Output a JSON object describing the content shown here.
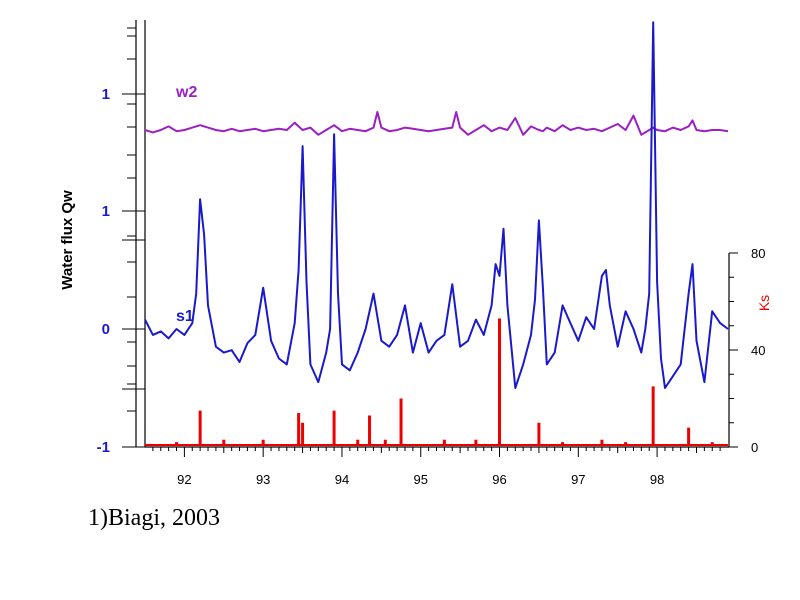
{
  "caption": "1)Biagi, 2003",
  "chart_data": {
    "type": "line",
    "xlabel": "",
    "ylabel": "Water flux Qw",
    "right_ylabel": "Ks",
    "x_ticks": [
      "92",
      "93",
      "94",
      "95",
      "96",
      "97",
      "98"
    ],
    "x_range": [
      91.5,
      98.9
    ],
    "left_y_ticks": [
      {
        "label": "1",
        "series": "w2",
        "value": 1
      },
      {
        "label": "1",
        "series": "s1",
        "value": 1
      },
      {
        "label": "0",
        "series": "s1",
        "value": 0
      },
      {
        "label": "-1",
        "series": "s1",
        "value": -1
      }
    ],
    "right_y_ticks": [
      "0",
      "40",
      "80"
    ],
    "right_ylim": [
      0,
      80
    ],
    "colors": {
      "w2": "#9b1fc4",
      "s1": "#1a1acc",
      "ks": "#ee0000",
      "tick_left": "#1a1acc",
      "ks_axis": "#ee0000"
    },
    "series": [
      {
        "name": "w2",
        "color": "#9b1fc4",
        "x": [
          91.5,
          91.6,
          91.7,
          91.8,
          91.9,
          92.0,
          92.1,
          92.2,
          92.3,
          92.4,
          92.5,
          92.6,
          92.7,
          92.8,
          92.9,
          93.0,
          93.1,
          93.2,
          93.3,
          93.4,
          93.5,
          93.6,
          93.7,
          93.8,
          93.9,
          94.0,
          94.1,
          94.2,
          94.3,
          94.4,
          94.45,
          94.5,
          94.6,
          94.7,
          94.8,
          94.9,
          95.0,
          95.1,
          95.2,
          95.3,
          95.4,
          95.45,
          95.5,
          95.6,
          95.7,
          95.8,
          95.9,
          96.0,
          96.1,
          96.2,
          96.3,
          96.4,
          96.5,
          96.55,
          96.6,
          96.7,
          96.8,
          96.9,
          97.0,
          97.1,
          97.2,
          97.3,
          97.4,
          97.5,
          97.6,
          97.7,
          97.8,
          97.9,
          97.95,
          98.0,
          98.1,
          98.2,
          98.3,
          98.4,
          98.45,
          98.5,
          98.6,
          98.7,
          98.8,
          98.9
        ],
        "y": [
          0.7,
          0.68,
          0.7,
          0.73,
          0.69,
          0.7,
          0.72,
          0.74,
          0.72,
          0.7,
          0.69,
          0.71,
          0.69,
          0.7,
          0.71,
          0.69,
          0.7,
          0.71,
          0.7,
          0.76,
          0.7,
          0.72,
          0.66,
          0.7,
          0.74,
          0.69,
          0.71,
          0.7,
          0.69,
          0.72,
          0.85,
          0.72,
          0.69,
          0.7,
          0.72,
          0.71,
          0.7,
          0.69,
          0.7,
          0.71,
          0.72,
          0.85,
          0.72,
          0.66,
          0.7,
          0.74,
          0.69,
          0.72,
          0.7,
          0.8,
          0.66,
          0.73,
          0.7,
          0.69,
          0.72,
          0.69,
          0.74,
          0.7,
          0.72,
          0.7,
          0.71,
          0.69,
          0.72,
          0.75,
          0.7,
          0.82,
          0.66,
          0.7,
          0.72,
          0.7,
          0.69,
          0.72,
          0.7,
          0.73,
          0.78,
          0.7,
          0.69,
          0.7,
          0.7,
          0.69
        ]
      },
      {
        "name": "s1",
        "color": "#1a1acc",
        "x": [
          91.5,
          91.6,
          91.7,
          91.8,
          91.9,
          92.0,
          92.1,
          92.15,
          92.2,
          92.25,
          92.3,
          92.4,
          92.5,
          92.6,
          92.7,
          92.8,
          92.9,
          93.0,
          93.1,
          93.2,
          93.3,
          93.4,
          93.45,
          93.5,
          93.55,
          93.6,
          93.7,
          93.8,
          93.85,
          93.9,
          93.95,
          94.0,
          94.1,
          94.2,
          94.3,
          94.4,
          94.5,
          94.6,
          94.7,
          94.8,
          94.9,
          95.0,
          95.1,
          95.2,
          95.3,
          95.4,
          95.5,
          95.6,
          95.7,
          95.8,
          95.9,
          95.95,
          96.0,
          96.05,
          96.1,
          96.2,
          96.3,
          96.4,
          96.45,
          96.5,
          96.55,
          96.6,
          96.7,
          96.8,
          96.9,
          97.0,
          97.1,
          97.2,
          97.3,
          97.35,
          97.4,
          97.5,
          97.6,
          97.7,
          97.8,
          97.85,
          97.9,
          97.95,
          98.0,
          98.05,
          98.1,
          98.2,
          98.3,
          98.4,
          98.45,
          98.5,
          98.6,
          98.7,
          98.8,
          98.9
        ],
        "y": [
          0.08,
          -0.05,
          -0.02,
          -0.08,
          0.0,
          -0.05,
          0.05,
          0.3,
          1.1,
          0.8,
          0.2,
          -0.15,
          -0.2,
          -0.18,
          -0.28,
          -0.12,
          -0.05,
          0.35,
          -0.1,
          -0.25,
          -0.3,
          0.05,
          0.5,
          1.55,
          0.4,
          -0.3,
          -0.45,
          -0.2,
          0.0,
          1.65,
          0.3,
          -0.3,
          -0.35,
          -0.2,
          0.0,
          0.3,
          -0.1,
          -0.15,
          -0.05,
          0.2,
          -0.2,
          0.05,
          -0.2,
          -0.1,
          -0.05,
          0.38,
          -0.15,
          -0.1,
          0.08,
          -0.05,
          0.2,
          0.55,
          0.45,
          0.85,
          0.2,
          -0.5,
          -0.3,
          -0.05,
          0.25,
          0.92,
          0.35,
          -0.3,
          -0.2,
          0.2,
          0.05,
          -0.1,
          0.1,
          0.0,
          0.45,
          0.5,
          0.2,
          -0.15,
          0.15,
          0.0,
          -0.2,
          0.0,
          0.3,
          2.6,
          0.4,
          -0.25,
          -0.5,
          -0.4,
          -0.3,
          0.3,
          0.55,
          -0.1,
          -0.45,
          0.15,
          0.05,
          0.0
        ]
      },
      {
        "name": "Ks",
        "color": "#ee0000",
        "x": [
          91.6,
          91.9,
          92.2,
          92.5,
          93.0,
          93.45,
          93.5,
          93.9,
          94.2,
          94.35,
          94.55,
          94.75,
          95.3,
          95.7,
          96.0,
          96.5,
          96.8,
          97.3,
          97.6,
          97.95,
          98.4,
          98.7
        ],
        "y": [
          1,
          2,
          15,
          3,
          3,
          14,
          10,
          15,
          3,
          13,
          3,
          20,
          3,
          3,
          53,
          10,
          2,
          3,
          2,
          25,
          8,
          2
        ]
      }
    ]
  }
}
